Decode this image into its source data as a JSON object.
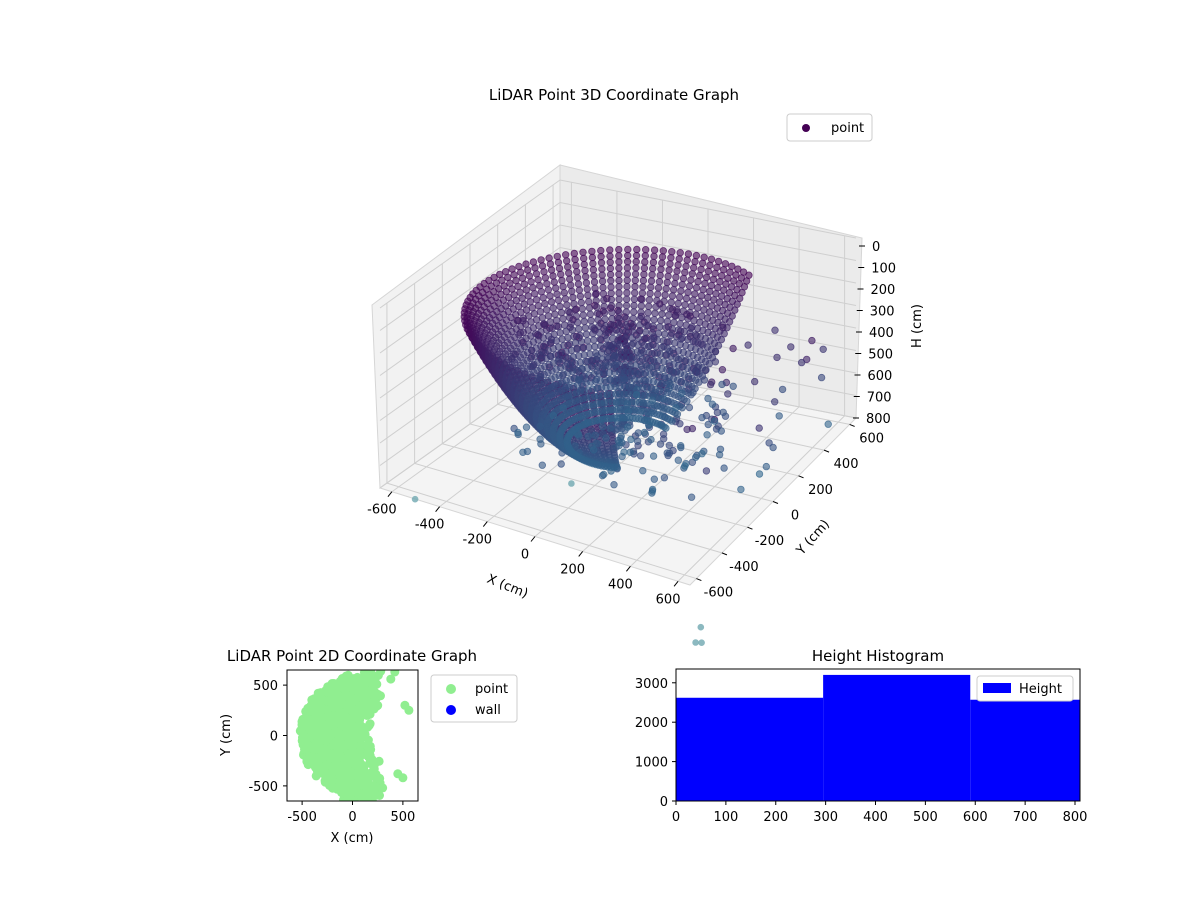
{
  "chart_data": [
    {
      "type": "scatter",
      "title": "LiDAR Point 3D Coordinate Graph",
      "xlabel": "X (cm)",
      "ylabel": "Y (cm)",
      "zlabel": "H (cm)",
      "xlim": [
        -650,
        650
      ],
      "ylim": [
        -650,
        650
      ],
      "zlim": [
        0,
        800
      ],
      "z_inverted": true,
      "x_ticks": [
        "-600",
        "-400",
        "-200",
        "0",
        "200",
        "400",
        "600"
      ],
      "y_ticks": [
        "-600",
        "-400",
        "-200",
        "0",
        "200",
        "400",
        "600"
      ],
      "z_ticks": [
        "0",
        "100",
        "200",
        "300",
        "400",
        "500",
        "600",
        "700",
        "800"
      ],
      "grid": true,
      "legend": {
        "position": "top-right",
        "entries": [
          "point"
        ]
      },
      "colors": {
        "point": "#440154",
        "low_points": "#31688e",
        "outlier": "#7fb3b8"
      }
    },
    {
      "type": "scatter",
      "title": "LiDAR Point 2D Coordinate Graph",
      "xlabel": "X (cm)",
      "ylabel": "Y (cm)",
      "xlim": [
        -650,
        650
      ],
      "ylim": [
        -650,
        650
      ],
      "x_ticks": [
        "-500",
        "0",
        "500"
      ],
      "y_ticks": [
        "500",
        "0",
        "-500"
      ],
      "legend": {
        "position": "outside-right",
        "entries": [
          "point",
          "wall"
        ]
      },
      "colors": {
        "point": "#90ee90",
        "wall": "#0000ff"
      }
    },
    {
      "type": "bar",
      "title": "Height Histogram",
      "series": [
        {
          "name": "Height",
          "bins": [
            [
              0,
              295
            ],
            [
              295,
              590
            ],
            [
              590,
              810
            ]
          ],
          "values": [
            2620,
            3200,
            2570
          ]
        }
      ],
      "xlim": [
        0,
        810
      ],
      "ylim": [
        0,
        3350
      ],
      "x_ticks": [
        "0",
        "100",
        "200",
        "300",
        "400",
        "500",
        "600",
        "700",
        "800"
      ],
      "y_ticks": [
        "0",
        "1000",
        "2000",
        "3000"
      ],
      "legend": {
        "position": "top-right",
        "entries": [
          "Height"
        ]
      },
      "colors": {
        "bar": "#0000ff"
      }
    }
  ]
}
